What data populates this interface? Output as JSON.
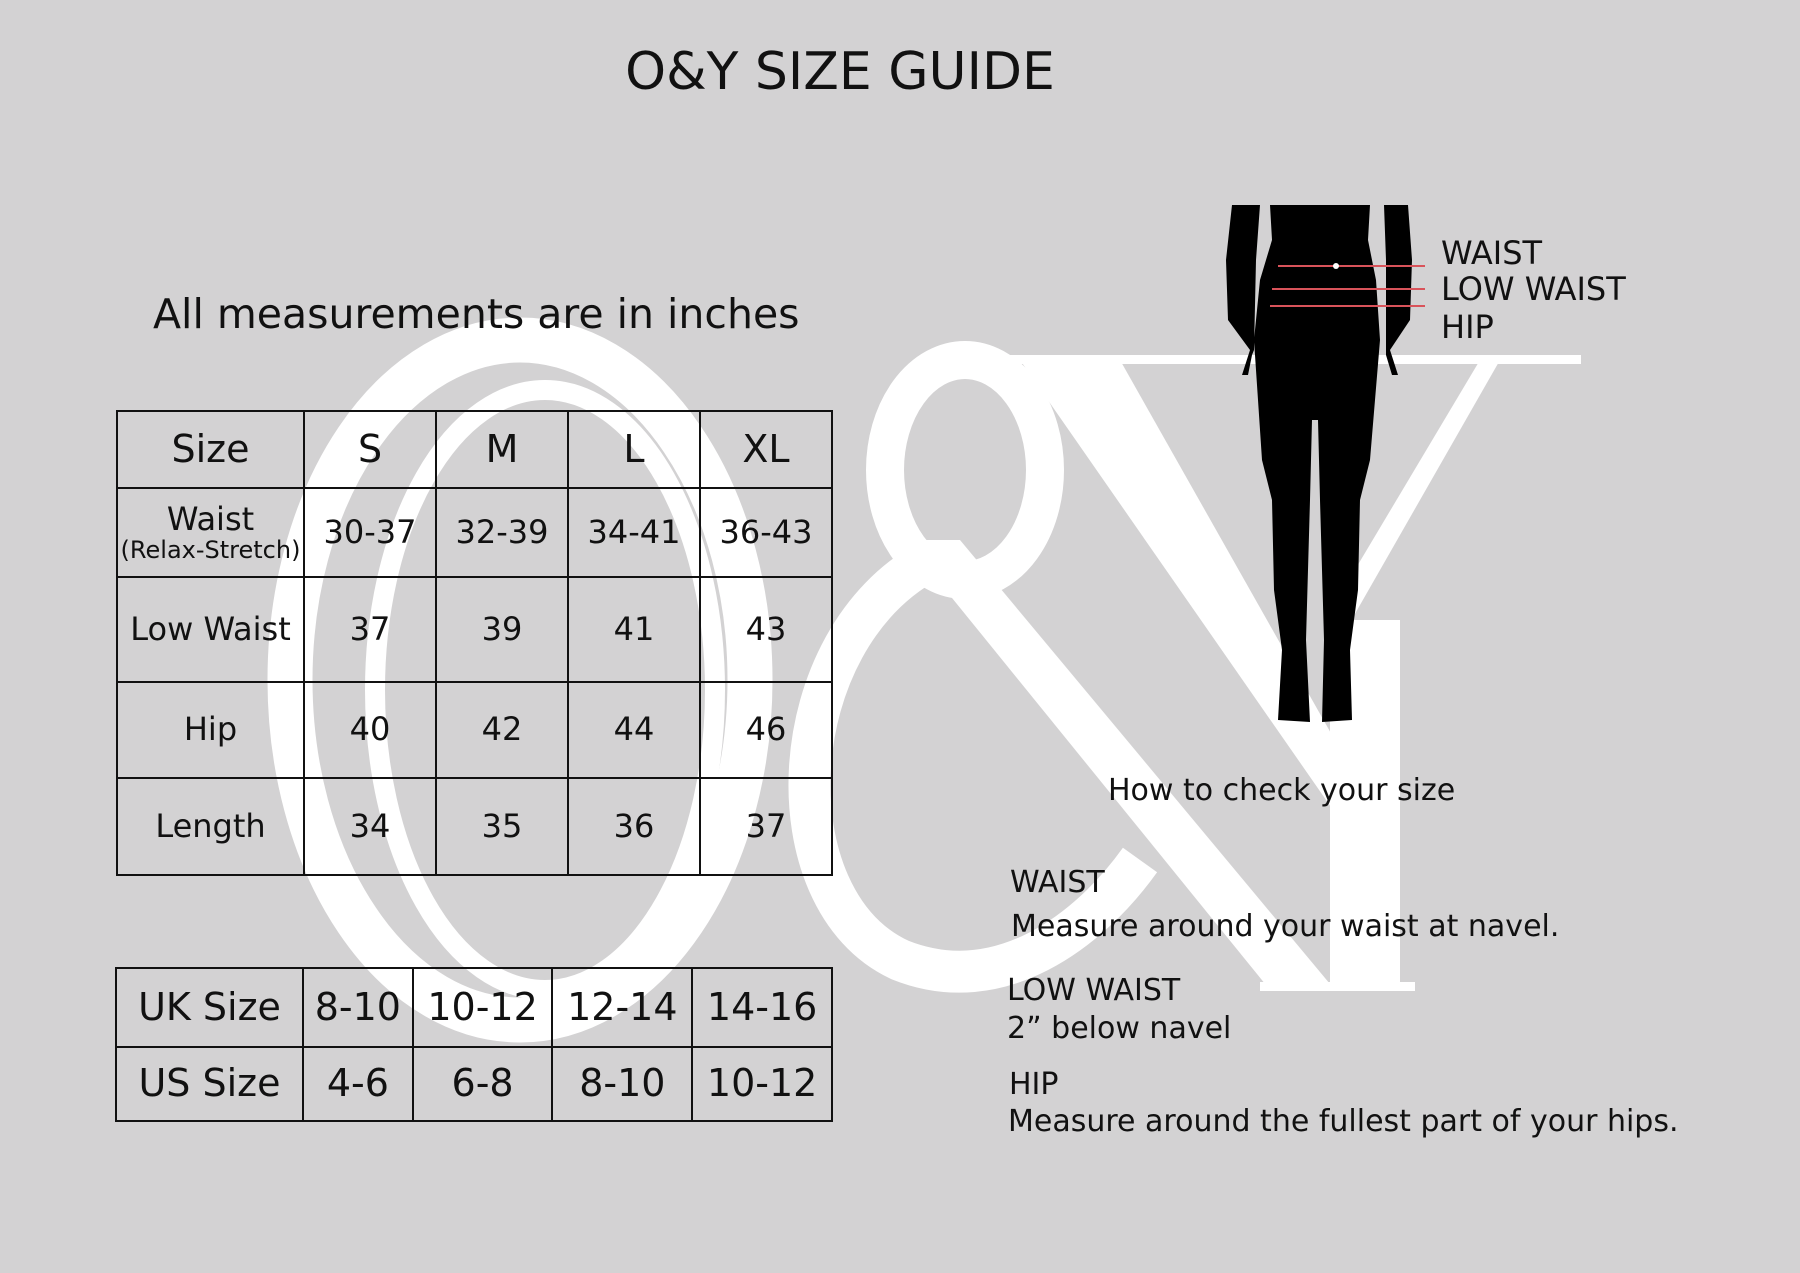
{
  "title": "O&Y SIZE GUIDE",
  "subtitle": "All measurements are in inches",
  "watermark": "O&Y",
  "measurement_table": {
    "header": [
      "Size",
      "S",
      "M",
      "L",
      "XL"
    ],
    "rows": [
      {
        "label": "Waist",
        "sublabel": "(Relax-Stretch)",
        "values": [
          "30-37",
          "32-39",
          "34-41",
          "36-43"
        ]
      },
      {
        "label": "Low Waist",
        "values": [
          "37",
          "39",
          "41",
          "43"
        ]
      },
      {
        "label": "Hip",
        "values": [
          "40",
          "42",
          "44",
          "46"
        ]
      },
      {
        "label": "Length",
        "values": [
          "34",
          "35",
          "36",
          "37"
        ]
      }
    ]
  },
  "conversion_table": {
    "rows": [
      {
        "label": "UK Size",
        "values": [
          "8-10",
          "10-12",
          "12-14",
          "14-16"
        ]
      },
      {
        "label": "US Size",
        "values": [
          "4-6",
          "6-8",
          "8-10",
          "10-12"
        ]
      }
    ]
  },
  "figure_labels": [
    "WAIST",
    "LOW WAIST",
    "HIP"
  ],
  "figure_line_color": "#d9535a",
  "howto": {
    "heading": "How to check your size",
    "items": [
      {
        "title": "WAIST",
        "text": "Measure around your waist at navel."
      },
      {
        "title": "LOW WAIST",
        "text": "2” below navel"
      },
      {
        "title": "HIP",
        "text": "Measure around the fullest part of your hips."
      }
    ]
  }
}
